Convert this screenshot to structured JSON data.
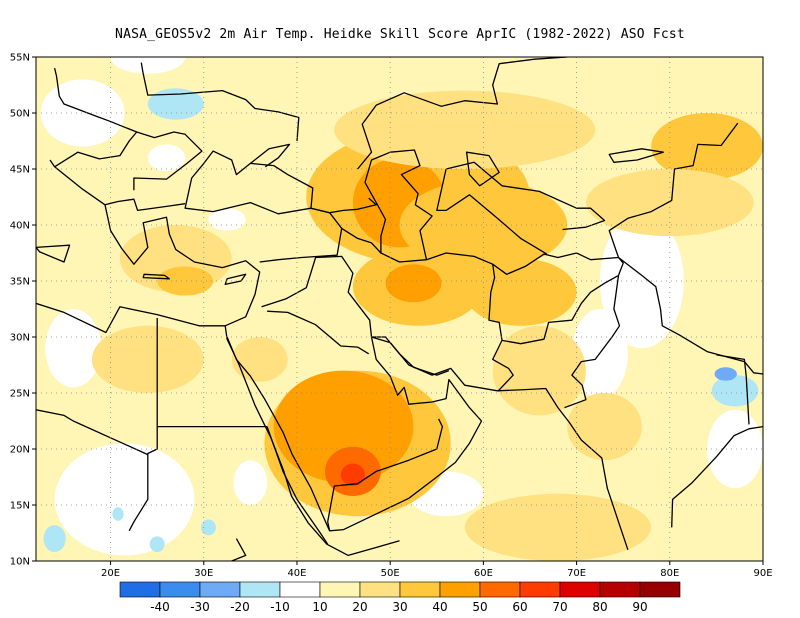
{
  "title": "NASA_GEOS5v2  2m Air Temp. Heidke Skill Score AprIC (1982-2022) ASO Fcst",
  "map": {
    "lon_range": [
      12,
      90
    ],
    "lat_range": [
      10,
      55
    ],
    "lat_ticks": [
      {
        "value": 55,
        "label": "55N"
      },
      {
        "value": 50,
        "label": "50N"
      },
      {
        "value": 45,
        "label": "45N"
      },
      {
        "value": 40,
        "label": "40N"
      },
      {
        "value": 35,
        "label": "35N"
      },
      {
        "value": 30,
        "label": "30N"
      },
      {
        "value": 25,
        "label": "25N"
      },
      {
        "value": 20,
        "label": "20N"
      },
      {
        "value": 15,
        "label": "15N"
      },
      {
        "value": 10,
        "label": "10N"
      }
    ],
    "lon_ticks": [
      {
        "value": 20,
        "label": "20E"
      },
      {
        "value": 30,
        "label": "30E"
      },
      {
        "value": 40,
        "label": "40E"
      },
      {
        "value": 50,
        "label": "50E"
      },
      {
        "value": 60,
        "label": "60E"
      },
      {
        "value": 70,
        "label": "70E"
      },
      {
        "value": 80,
        "label": "80E"
      },
      {
        "value": 90,
        "label": "90E"
      }
    ],
    "gridlines": "dotted",
    "background_level": "10-20",
    "skill_regions": [
      {
        "lon": 46.5,
        "lat": 20.5,
        "rx": 10.0,
        "ry": 6.5,
        "level": "30-40"
      },
      {
        "lon": 45.0,
        "lat": 22.0,
        "rx": 7.5,
        "ry": 5.0,
        "level": "40-50"
      },
      {
        "lon": 46.0,
        "lat": 18.0,
        "rx": 3.0,
        "ry": 2.2,
        "level": "50-60"
      },
      {
        "lon": 46.0,
        "lat": 17.7,
        "rx": 1.3,
        "ry": 1.0,
        "level": "60-70"
      },
      {
        "lon": 53.0,
        "lat": 42.5,
        "rx": 12.0,
        "ry": 6.0,
        "level": "30-40"
      },
      {
        "lon": 51.0,
        "lat": 42.0,
        "rx": 5.0,
        "ry": 4.0,
        "level": "40-50"
      },
      {
        "lon": 60.0,
        "lat": 40.0,
        "rx": 9.0,
        "ry": 4.0,
        "level": "30-40"
      },
      {
        "lon": 53.0,
        "lat": 34.5,
        "rx": 7.0,
        "ry": 3.5,
        "level": "30-40"
      },
      {
        "lon": 52.5,
        "lat": 34.8,
        "rx": 3.0,
        "ry": 1.7,
        "level": "40-50"
      },
      {
        "lon": 58.0,
        "lat": 48.5,
        "rx": 14.0,
        "ry": 3.5,
        "level": "20-30"
      },
      {
        "lon": 84.0,
        "lat": 47.0,
        "rx": 6.0,
        "ry": 3.0,
        "level": "30-40"
      },
      {
        "lon": 80.0,
        "lat": 42.0,
        "rx": 9.0,
        "ry": 3.0,
        "level": "20-30"
      },
      {
        "lon": 27.0,
        "lat": 37.0,
        "rx": 6.0,
        "ry": 3.0,
        "level": "20-30"
      },
      {
        "lon": 28.0,
        "lat": 35.0,
        "rx": 3.0,
        "ry": 1.3,
        "level": "30-40"
      },
      {
        "lon": 64.0,
        "lat": 34.0,
        "rx": 6.0,
        "ry": 3.0,
        "level": "30-40"
      },
      {
        "lon": 66.0,
        "lat": 27.0,
        "rx": 5.0,
        "ry": 4.0,
        "level": "20-30"
      },
      {
        "lon": 73.0,
        "lat": 22.0,
        "rx": 4.0,
        "ry": 3.0,
        "level": "20-30"
      },
      {
        "lon": 68.0,
        "lat": 13.0,
        "rx": 10.0,
        "ry": 3.0,
        "level": "20-30"
      },
      {
        "lon": 24.0,
        "lat": 28.0,
        "rx": 6.0,
        "ry": 3.0,
        "level": "20-30"
      },
      {
        "lon": 36.0,
        "lat": 28.0,
        "rx": 3.0,
        "ry": 2.0,
        "level": "20-30"
      }
    ],
    "low_skill_regions": [
      {
        "lon": 77.0,
        "lat": 35.0,
        "rx": 4.5,
        "ry": 6.0,
        "level": "0-10"
      },
      {
        "lon": 72.5,
        "lat": 28.5,
        "rx": 3.0,
        "ry": 4.0,
        "level": "0-10"
      },
      {
        "lon": 21.5,
        "lat": 15.5,
        "rx": 7.5,
        "ry": 5.0,
        "level": "0-10"
      },
      {
        "lon": 16.0,
        "lat": 29.0,
        "rx": 3.0,
        "ry": 3.5,
        "level": "0-10"
      },
      {
        "lon": 17.0,
        "lat": 50.0,
        "rx": 4.5,
        "ry": 3.0,
        "level": "0-10"
      },
      {
        "lon": 24.0,
        "lat": 55.0,
        "rx": 4.0,
        "ry": 1.5,
        "level": "0-10"
      },
      {
        "lon": 35.0,
        "lat": 17.0,
        "rx": 1.8,
        "ry": 2.0,
        "level": "0-10"
      },
      {
        "lon": 56.0,
        "lat": 16.0,
        "rx": 4.0,
        "ry": 2.0,
        "level": "0-10"
      },
      {
        "lon": 87.0,
        "lat": 20.0,
        "rx": 3.0,
        "ry": 3.5,
        "level": "0-10"
      },
      {
        "lon": 71.0,
        "lat": 12.5,
        "rx": 1.5,
        "ry": 1.5,
        "level": "0-10"
      },
      {
        "lon": 74.0,
        "lat": 21.0,
        "rx": 1.5,
        "ry": 1.5,
        "level": "0-10"
      },
      {
        "lon": 32.5,
        "lat": 40.5,
        "rx": 2.0,
        "ry": 1.0,
        "level": "0-10"
      },
      {
        "lon": 26.0,
        "lat": 46.0,
        "rx": 2.0,
        "ry": 1.2,
        "level": "0-10"
      }
    ],
    "negative_regions": [
      {
        "lon": 27.0,
        "lat": 50.8,
        "rx": 3.0,
        "ry": 1.4,
        "level": "-20--10"
      },
      {
        "lon": 87.0,
        "lat": 25.2,
        "rx": 2.5,
        "ry": 1.4,
        "level": "-20--10"
      },
      {
        "lon": 86.0,
        "lat": 26.7,
        "rx": 1.2,
        "ry": 0.6,
        "level": "-30--20"
      },
      {
        "lon": 14.0,
        "lat": 12.0,
        "rx": 1.2,
        "ry": 1.2,
        "level": "-20--10"
      },
      {
        "lon": 20.8,
        "lat": 14.2,
        "rx": 0.6,
        "ry": 0.6,
        "level": "-20--10"
      },
      {
        "lon": 30.5,
        "lat": 13.0,
        "rx": 0.8,
        "ry": 0.7,
        "level": "-20--10"
      },
      {
        "lon": 25.0,
        "lat": 11.5,
        "rx": 0.8,
        "ry": 0.7,
        "level": "-20--10"
      }
    ]
  },
  "colorbar": {
    "colors": [
      "#1f6ee6",
      "#3c8cf0",
      "#6eaaf5",
      "#aee6f5",
      "#ffffff",
      "#fff5b4",
      "#ffe182",
      "#ffc83c",
      "#ffa000",
      "#ff6a00",
      "#ff3c00",
      "#dc0000",
      "#b40000",
      "#960000"
    ],
    "labels": [
      "-40",
      "-30",
      "-20",
      "-10",
      "10",
      "20",
      "30",
      "40",
      "50",
      "60",
      "70",
      "80",
      "90"
    ]
  },
  "level_colors": {
    "-30--20": "#6eaaf5",
    "-20--10": "#aee6f5",
    "0-10": "#ffffff",
    "10-20": "#fff5b4",
    "20-30": "#ffe182",
    "30-40": "#ffc83c",
    "40-50": "#ffa000",
    "50-60": "#ff6a00",
    "60-70": "#ff3c00"
  }
}
